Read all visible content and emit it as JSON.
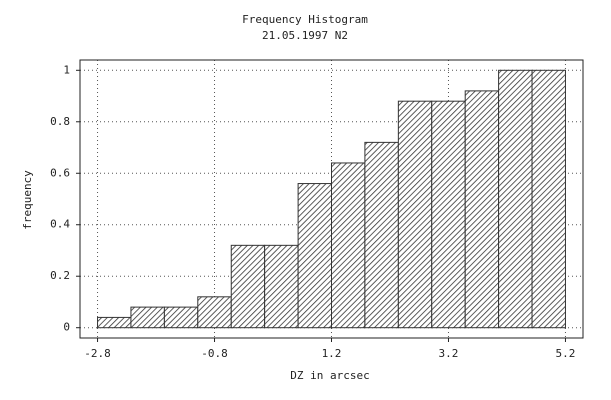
{
  "chart_data": {
    "type": "histogram",
    "title": "Frequency Histogram",
    "subtitle": "21.05.1997 N2",
    "xlabel": "DZ in arcsec",
    "ylabel": "frequency",
    "bins": [
      -2.8,
      -2.229,
      -1.657,
      -1.086,
      -0.514,
      0.057,
      0.629,
      1.2,
      1.771,
      2.343,
      2.914,
      3.486,
      4.057,
      4.629,
      5.2
    ],
    "values": [
      0.04,
      0.08,
      0.08,
      0.12,
      0.32,
      0.32,
      0.56,
      0.64,
      0.72,
      0.88,
      0.88,
      0.92,
      1,
      1
    ],
    "color": "#333333",
    "xlim": [
      -3.1,
      5.5
    ],
    "ylim": [
      -0.04,
      1.04
    ],
    "xticks": [
      -2.8,
      -0.8,
      1.2,
      3.2,
      5.2
    ],
    "yticks": [
      0,
      0.2,
      0.4,
      0.6,
      0.8,
      1
    ],
    "grid": true
  }
}
